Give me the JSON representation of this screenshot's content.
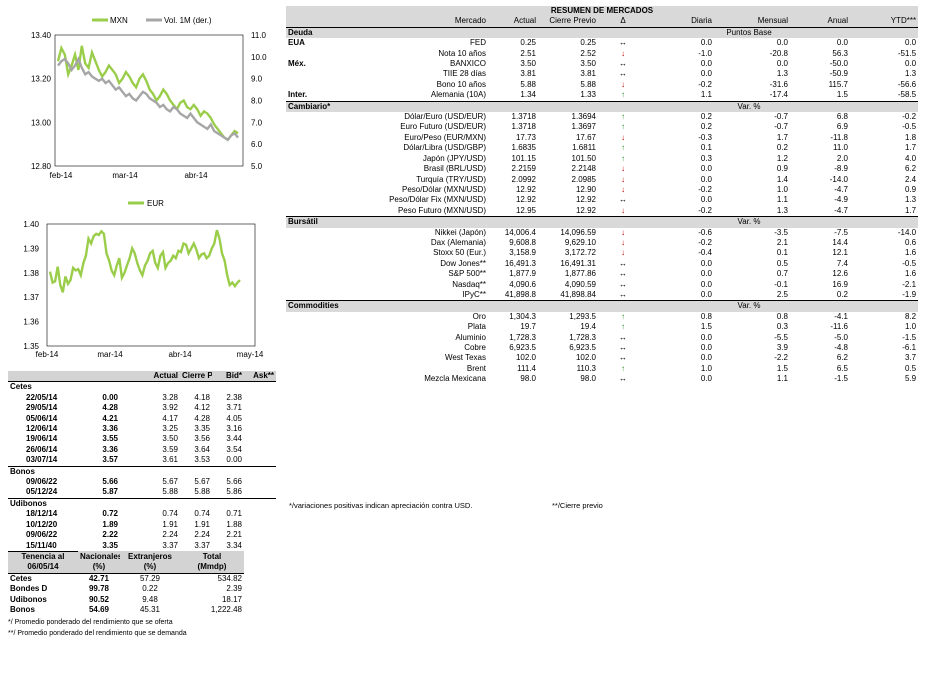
{
  "colors": {
    "mxn": "#9acd4a",
    "vol": "#a6a6a6",
    "eur": "#9acd4a",
    "up": "#2e8b2e",
    "down": "#c00000"
  },
  "chart_data": [
    {
      "type": "line",
      "legend": [
        "MXN",
        "Vol. 1M (der.)"
      ],
      "x_ticks": [
        "feb-14",
        "mar-14",
        "abr-14"
      ],
      "y_left_ticks": [
        "13.40",
        "13.20",
        "13.00",
        "12.80"
      ],
      "y_left_lim": [
        12.8,
        13.4
      ],
      "y_right_ticks": [
        "11.0",
        "10.0",
        "9.0",
        "8.0",
        "7.0",
        "6.0",
        "5.0"
      ],
      "y_right_lim": [
        5.0,
        11.0
      ],
      "series": [
        {
          "name": "MXN",
          "axis": "left",
          "values": [
            13.28,
            13.34,
            13.31,
            13.22,
            13.26,
            13.31,
            13.24,
            13.35,
            13.27,
            13.25,
            13.32,
            13.28,
            13.24,
            13.21,
            13.23,
            13.26,
            13.24,
            13.22,
            13.18,
            13.2,
            13.23,
            13.21,
            13.18,
            13.16,
            13.2,
            13.22,
            13.19,
            13.15,
            13.13,
            13.1,
            13.12,
            13.15,
            13.13,
            13.1,
            13.08,
            13.06,
            13.09,
            13.1,
            13.07,
            13.06,
            13.08,
            13.06,
            13.03,
            13.05,
            13.04,
            13.02,
            12.99,
            12.97,
            12.95,
            12.93,
            12.92,
            12.94,
            12.96,
            12.95
          ]
        },
        {
          "name": "Vol. 1M (der.)",
          "axis": "right",
          "values": [
            9.6,
            9.8,
            9.9,
            9.7,
            9.4,
            9.6,
            9.9,
            9.5,
            9.2,
            9.3,
            9.1,
            9.0,
            8.9,
            9.0,
            8.8,
            8.9,
            8.7,
            8.5,
            8.6,
            8.4,
            8.2,
            8.3,
            8.1,
            8.0,
            8.2,
            8.4,
            8.3,
            8.1,
            8.0,
            7.9,
            7.7,
            7.8,
            7.6,
            7.5,
            7.7,
            7.6,
            7.4,
            7.3,
            7.2,
            7.4,
            7.2,
            7.0,
            6.9,
            6.8,
            6.7,
            6.9,
            6.6,
            6.5,
            6.4,
            6.3,
            6.2,
            6.4,
            6.5,
            6.3
          ]
        }
      ]
    },
    {
      "type": "line",
      "legend": [
        "EUR"
      ],
      "x_ticks": [
        "feb-14",
        "mar-14",
        "abr-14",
        "may-14"
      ],
      "y_ticks": [
        "1.40",
        "1.39",
        "1.38",
        "1.37",
        "1.36",
        "1.35"
      ],
      "ylim": [
        1.35,
        1.4
      ],
      "series": [
        {
          "name": "EUR",
          "values": [
            1.3805,
            1.376,
            1.3765,
            1.3825,
            1.375,
            1.372,
            1.3785,
            1.3755,
            1.377,
            1.382,
            1.381,
            1.3815,
            1.379,
            1.384,
            1.387,
            1.394,
            1.392,
            1.395,
            1.396,
            1.3955,
            1.397,
            1.396,
            1.388,
            1.385,
            1.381,
            1.379,
            1.383,
            1.386,
            1.378,
            1.38,
            1.383,
            1.386,
            1.39,
            1.388,
            1.384,
            1.381,
            1.379,
            1.383,
            1.385,
            1.388,
            1.389,
            1.384,
            1.382,
            1.387,
            1.3885,
            1.382,
            1.384,
            1.385,
            1.387,
            1.386,
            1.389,
            1.3885,
            1.392,
            1.3915,
            1.388,
            1.39,
            1.392,
            1.3895,
            1.386,
            1.3875,
            1.388,
            1.386,
            1.387,
            1.39,
            1.392,
            1.3975,
            1.394,
            1.388,
            1.385,
            1.379,
            1.375,
            1.376,
            1.3745,
            1.376,
            1.377
          ]
        }
      ]
    }
  ],
  "left": {
    "header": [
      "",
      "Actual",
      "Cierre Previo",
      "Bid*",
      "Ask**"
    ],
    "groups": [
      {
        "name": "Cetes",
        "rows": [
          [
            "22/05/14",
            "0.00",
            "3.28",
            "4.18",
            "2.38"
          ],
          [
            "29/05/14",
            "4.28",
            "3.92",
            "4.12",
            "3.71"
          ],
          [
            "05/06/14",
            "4.21",
            "4.17",
            "4.28",
            "4.05"
          ],
          [
            "12/06/14",
            "3.36",
            "3.25",
            "3.35",
            "3.16"
          ],
          [
            "19/06/14",
            "3.55",
            "3.50",
            "3.56",
            "3.44"
          ],
          [
            "26/06/14",
            "3.36",
            "3.59",
            "3.64",
            "3.54"
          ],
          [
            "03/07/14",
            "3.57",
            "3.61",
            "3.53",
            "0.00"
          ]
        ]
      },
      {
        "name": "Bonos",
        "rows": [
          [
            "09/06/22",
            "5.66",
            "5.67",
            "5.67",
            "5.66"
          ],
          [
            "05/12/24",
            "5.87",
            "5.88",
            "5.88",
            "5.86"
          ]
        ]
      },
      {
        "name": "Udibonos",
        "rows": [
          [
            "18/12/14",
            "0.72",
            "0.74",
            "0.74",
            "0.71"
          ],
          [
            "10/12/20",
            "1.89",
            "1.91",
            "1.91",
            "1.88"
          ],
          [
            "09/06/22",
            "2.22",
            "2.24",
            "2.24",
            "2.21"
          ],
          [
            "15/11/40",
            "3.35",
            "3.37",
            "3.37",
            "3.34"
          ]
        ]
      }
    ],
    "tenencia_header": [
      [
        "Tenencia al",
        "Nacionales",
        "Extranjeros",
        "Total"
      ],
      [
        "06/05/14",
        "(%)",
        "(%)",
        "(Mmdp)"
      ]
    ],
    "tenencia": [
      [
        "Cetes",
        "42.71",
        "57.29",
        "534.82"
      ],
      [
        "Bondes D",
        "99.78",
        "0.22",
        "2.39"
      ],
      [
        "Udibonos",
        "90.52",
        "9.48",
        "18.17"
      ],
      [
        "Bonos",
        "54.69",
        "45.31",
        "1,222.48"
      ]
    ],
    "notes": [
      "*/ Promedio ponderado del rendimiento que se oferta",
      "**/ Promedio ponderado del rendimiento que se demanda"
    ]
  },
  "right": {
    "title": "RESUMEN DE MERCADOS",
    "header": [
      "",
      "Mercado",
      "Actual",
      "Cierre Previo",
      "Δ",
      "Diaria",
      "Mensual",
      "Anual",
      "YTD***"
    ],
    "sections": [
      {
        "name": "Deuda",
        "unit": "Puntos Base",
        "rows": [
          [
            "EUA",
            "FED",
            "0.25",
            "0.25",
            "flat",
            "0.0",
            "0.0",
            "0.0",
            "0.0"
          ],
          [
            "",
            "Nota 10 años",
            "2.51",
            "2.52",
            "down",
            "-1.0",
            "-20.8",
            "56.3",
            "-51.5"
          ],
          [
            "Méx.",
            "BANXICO",
            "3.50",
            "3.50",
            "flat",
            "0.0",
            "0.0",
            "-50.0",
            "0.0"
          ],
          [
            "",
            "TIIE 28 días",
            "3.81",
            "3.81",
            "flat",
            "0.0",
            "1.3",
            "-50.9",
            "1.3"
          ],
          [
            "",
            "Bono 10 años",
            "5.88",
            "5.88",
            "down",
            "-0.2",
            "-31.6",
            "115.7",
            "-56.6"
          ],
          [
            "Inter.",
            "Alemania (10A)",
            "1.34",
            "1.33",
            "up",
            "1.1",
            "-17.4",
            "1.5",
            "-58.5"
          ]
        ]
      },
      {
        "name": "Cambiario*",
        "unit": "Var. %",
        "rows": [
          [
            "",
            "Dólar/Euro (USD/EUR)",
            "1.3718",
            "1.3694",
            "up",
            "0.2",
            "-0.7",
            "6.8",
            "-0.2"
          ],
          [
            "",
            "Euro Futuro (USD/EUR)",
            "1.3718",
            "1.3697",
            "up",
            "0.2",
            "-0.7",
            "6.9",
            "-0.5"
          ],
          [
            "",
            "Euro/Peso  (EUR/MXN)",
            "17.73",
            "17.67",
            "down",
            "-0.3",
            "1.7",
            "-11.8",
            "1.8"
          ],
          [
            "",
            "Dólar/Libra (USD/GBP)",
            "1.6835",
            "1.6811",
            "up",
            "0.1",
            "0.2",
            "11.0",
            "1.7"
          ],
          [
            "",
            "Japón (JPY/USD)",
            "101.15",
            "101.50",
            "up",
            "0.3",
            "1.2",
            "2.0",
            "4.0"
          ],
          [
            "",
            "Brasil (BRL/USD)",
            "2.2159",
            "2.2148",
            "down",
            "0.0",
            "0.9",
            "-8.9",
            "6.2"
          ],
          [
            "",
            "Turquía (TRY/USD)",
            "2.0992",
            "2.0985",
            "down",
            "0.0",
            "1.4",
            "-14.0",
            "2.4"
          ],
          [
            "",
            "Peso/Dólar (MXN/USD)",
            "12.92",
            "12.90",
            "down",
            "-0.2",
            "1.0",
            "-4.7",
            "0.9"
          ],
          [
            "",
            "Peso/Dólar Fix (MXN/USD)",
            "12.92",
            "12.92",
            "flat",
            "0.0",
            "1.1",
            "-4.9",
            "1.3"
          ],
          [
            "",
            "Peso Futuro (MXN/USD)",
            "12.95",
            "12.92",
            "down",
            "-0.2",
            "1.3",
            "-4.7",
            "1.7"
          ]
        ]
      },
      {
        "name": "Bursátil",
        "unit": "Var. %",
        "rows": [
          [
            "",
            "Nikkei (Japón)",
            "14,006.4",
            "14,096.59",
            "down",
            "-0.6",
            "-3.5",
            "-7.5",
            "-14.0"
          ],
          [
            "",
            "Dax (Alemania)",
            "9,608.8",
            "9,629.10",
            "down",
            "-0.2",
            "2.1",
            "14.4",
            "0.6"
          ],
          [
            "",
            "Stoxx 50 (Eur.)",
            "3,158.9",
            "3,172.72",
            "down",
            "-0.4",
            "0.1",
            "12.1",
            "1.6"
          ],
          [
            "",
            "Dow Jones**",
            "16,491.3",
            "16,491.31",
            "flat",
            "0.0",
            "0.5",
            "7.4",
            "-0.5"
          ],
          [
            "",
            "S&P 500**",
            "1,877.9",
            "1,877.86",
            "flat",
            "0.0",
            "0.7",
            "12.6",
            "1.6"
          ],
          [
            "",
            "Nasdaq**",
            "4,090.6",
            "4,090.59",
            "flat",
            "0.0",
            "-0.1",
            "16.9",
            "-2.1"
          ],
          [
            "",
            "IPyC**",
            "41,898.8",
            "41,898.84",
            "flat",
            "0.0",
            "2.5",
            "0.2",
            "-1.9"
          ]
        ]
      },
      {
        "name": "Commodities",
        "unit": "Var. %",
        "rows": [
          [
            "",
            "Oro",
            "1,304.3",
            "1,293.5",
            "up",
            "0.8",
            "0.8",
            "-4.1",
            "8.2"
          ],
          [
            "",
            "Plata",
            "19.7",
            "19.4",
            "up",
            "1.5",
            "0.3",
            "-11.6",
            "1.0"
          ],
          [
            "",
            "Aluminio",
            "1,728.3",
            "1,728.3",
            "flat",
            "0.0",
            "-5.5",
            "-5.0",
            "-1.5"
          ],
          [
            "",
            "Cobre",
            "6,923.5",
            "6,923.5",
            "flat",
            "0.0",
            "3.9",
            "-4.8",
            "-6.1"
          ],
          [
            "",
            "West Texas",
            "102.0",
            "102.0",
            "flat",
            "0.0",
            "-2.2",
            "6.2",
            "3.7"
          ],
          [
            "",
            "Brent",
            "111.4",
            "110.3",
            "up",
            "1.0",
            "1.5",
            "6.5",
            "0.5"
          ],
          [
            "",
            "Mezcla Mexicana",
            "98.0",
            "98.0",
            "flat",
            "0.0",
            "1.1",
            "-1.5",
            "5.9"
          ]
        ]
      }
    ],
    "footnote_left": "*/variaciones positivas indican apreciación contra USD.",
    "footnote_right": "**/Cierre previo"
  }
}
